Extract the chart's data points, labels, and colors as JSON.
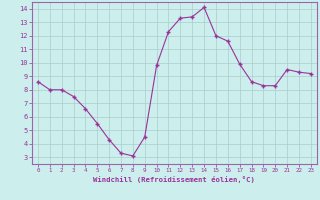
{
  "x_values": [
    0,
    1,
    2,
    3,
    4,
    5,
    6,
    7,
    8,
    9,
    10,
    11,
    12,
    13,
    14,
    15,
    16,
    17,
    18,
    19,
    20,
    21,
    22,
    23
  ],
  "y_values": [
    8.6,
    8.0,
    8.0,
    7.5,
    6.6,
    5.5,
    4.3,
    3.3,
    3.1,
    4.5,
    9.8,
    12.3,
    13.3,
    13.4,
    14.1,
    12.0,
    11.6,
    9.9,
    8.6,
    8.3,
    8.3,
    9.5,
    9.3,
    9.2
  ],
  "line_color": "#993399",
  "marker": "+",
  "marker_size": 3,
  "bg_color": "#cceeed",
  "grid_color": "#aacccc",
  "xlabel": "Windchill (Refroidissement éolien,°C)",
  "xlim": [
    -0.5,
    23.5
  ],
  "ylim": [
    2.5,
    14.5
  ],
  "yticks": [
    3,
    4,
    5,
    6,
    7,
    8,
    9,
    10,
    11,
    12,
    13,
    14
  ],
  "xticks": [
    0,
    1,
    2,
    3,
    4,
    5,
    6,
    7,
    8,
    9,
    10,
    11,
    12,
    13,
    14,
    15,
    16,
    17,
    18,
    19,
    20,
    21,
    22,
    23
  ],
  "tick_color": "#993399",
  "label_color": "#993399",
  "spine_color": "#9966aa"
}
